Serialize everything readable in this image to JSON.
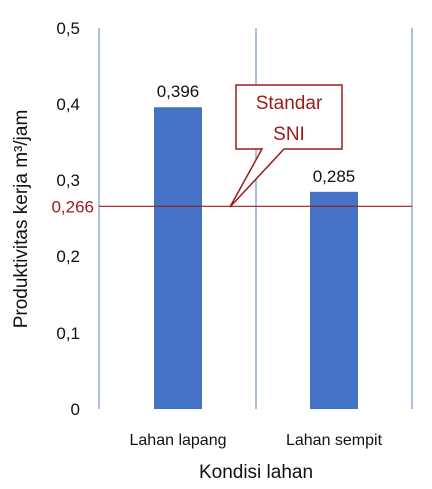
{
  "chart_data": {
    "type": "bar",
    "categories": [
      "Lahan lapang",
      "Lahan sempit"
    ],
    "values": [
      0.396,
      0.285
    ],
    "value_labels": [
      "0,396",
      "0,285"
    ],
    "xlabel": "Kondisi lahan",
    "ylabel": "Produktivitas kerja m³/jam",
    "ylim": [
      0,
      0.5
    ],
    "yticks": [
      0,
      0.1,
      0.2,
      0.3,
      0.4,
      0.5
    ],
    "ytick_labels": [
      "0",
      "0,1",
      "0,2",
      "0,3",
      "0,4",
      "0,5"
    ],
    "grid": false,
    "bar_color": "#4472c4",
    "frame_color": "#8eaadb",
    "reference_line": {
      "value": 0.266,
      "label": "0,266",
      "color": "#9b1b1b",
      "callout_lines": [
        "Standar",
        "SNI"
      ]
    }
  }
}
